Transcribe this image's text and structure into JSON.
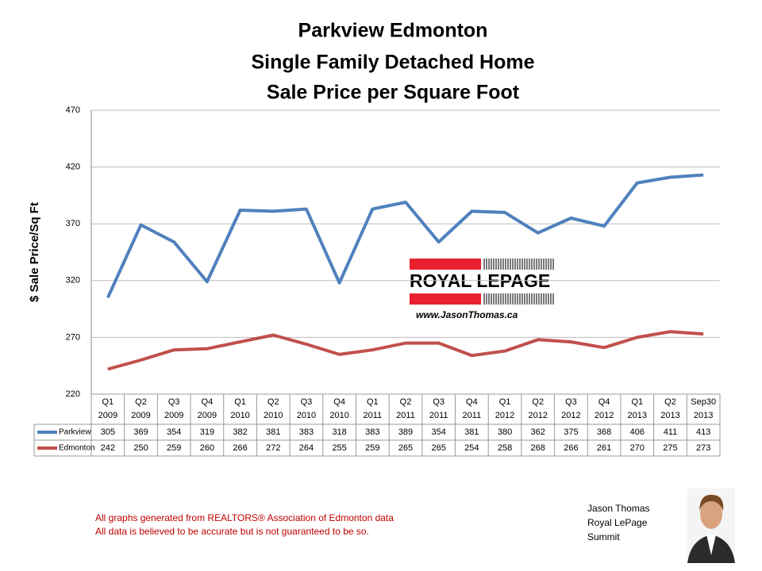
{
  "chart_data": {
    "type": "line",
    "title": [
      "Parkview Edmonton",
      "Single Family Detached Home",
      "Sale Price per Square Foot"
    ],
    "y_label": "$ Sale Price/Sq Ft",
    "categories": [
      [
        "Q1",
        "2009"
      ],
      [
        "Q2",
        "2009"
      ],
      [
        "Q3",
        "2009"
      ],
      [
        "Q4",
        "2009"
      ],
      [
        "Q1",
        "2010"
      ],
      [
        "Q2",
        "2010"
      ],
      [
        "Q3",
        "2010"
      ],
      [
        "Q4",
        "2010"
      ],
      [
        "Q1",
        "2011"
      ],
      [
        "Q2",
        "2011"
      ],
      [
        "Q3",
        "2011"
      ],
      [
        "Q4",
        "2011"
      ],
      [
        "Q1",
        "2012"
      ],
      [
        "Q2",
        "2012"
      ],
      [
        "Q3",
        "2012"
      ],
      [
        "Q4",
        "2012"
      ],
      [
        "Q1",
        "2013"
      ],
      [
        "Q2",
        "2013"
      ],
      [
        "Sep30",
        "2013"
      ]
    ],
    "series": [
      {
        "name": "Parkview",
        "color": "#4f81bd",
        "values": [
          305,
          369,
          354,
          319,
          382,
          381,
          383,
          318,
          383,
          389,
          354,
          381,
          380,
          362,
          375,
          368,
          406,
          411,
          413
        ]
      },
      {
        "name": "Edmonton",
        "color": "#c0504d",
        "values": [
          242,
          250,
          259,
          260,
          266,
          272,
          264,
          255,
          259,
          265,
          265,
          254,
          258,
          268,
          266,
          261,
          270,
          275,
          273
        ]
      }
    ],
    "ylim": [
      220,
      470
    ],
    "yticks": [
      220,
      270,
      320,
      370,
      420,
      470
    ],
    "grid": true,
    "logo": {
      "brand": "ROYAL LEPAGE",
      "url": "www.JasonThomas.ca"
    },
    "footnotes": [
      "All graphs generated from REALTORS® Association of Edmonton data",
      "All data is believed to be accurate but is not guaranteed to be so."
    ],
    "signature": [
      "Jason Thomas",
      "Royal LePage",
      "Summit"
    ]
  }
}
